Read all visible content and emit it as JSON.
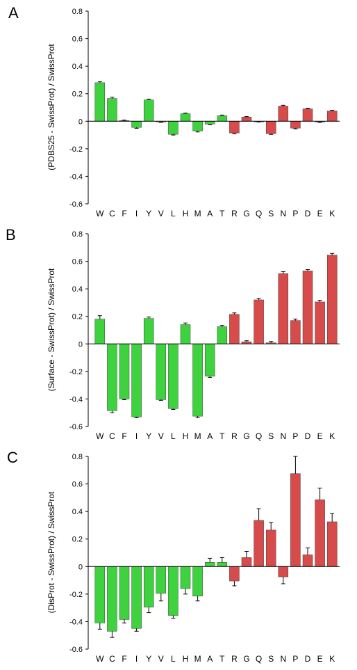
{
  "colors": {
    "hydrophobic": "#3fd23f",
    "polar": "#d84b4b",
    "axis": "#000000",
    "error": "#000000"
  },
  "chart_data": [
    {
      "type": "bar",
      "panel": "A",
      "ylabel": "(PDBS25 - SwissProt) / SwissProt",
      "ylim": [
        -0.6,
        0.8
      ],
      "yticks": [
        "0.8",
        "0.6",
        "0.4",
        "0.2",
        "0",
        "-0.2",
        "-0.4",
        "-0.6"
      ],
      "ytick_values": [
        0.8,
        0.6,
        0.4,
        0.2,
        0,
        -0.2,
        -0.4,
        -0.6
      ],
      "grid": false,
      "categories": [
        "W",
        "C",
        "F",
        "I",
        "Y",
        "V",
        "L",
        "H",
        "M",
        "A",
        "T",
        "R",
        "G",
        "Q",
        "S",
        "N",
        "P",
        "D",
        "E",
        "K"
      ],
      "values": [
        0.28,
        0.165,
        0.005,
        -0.045,
        0.155,
        -0.005,
        -0.095,
        0.055,
        -0.07,
        -0.02,
        0.04,
        -0.085,
        0.03,
        -0.002,
        -0.09,
        0.11,
        -0.05,
        0.09,
        -0.005,
        0.075
      ],
      "errors": [
        0.008,
        0.01,
        0.004,
        0.006,
        0.006,
        0.003,
        0.005,
        0.005,
        0.008,
        0.004,
        0.005,
        0.005,
        0.004,
        0.003,
        0.006,
        0.006,
        0.005,
        0.005,
        0.003,
        0.004
      ],
      "group": [
        "h",
        "h",
        "h",
        "h",
        "h",
        "h",
        "h",
        "h",
        "h",
        "h",
        "h",
        "p",
        "p",
        "p",
        "p",
        "p",
        "p",
        "p",
        "p",
        "p"
      ]
    },
    {
      "type": "bar",
      "panel": "B",
      "ylabel": "(Surface - SwissProt) / SwissProt",
      "ylim": [
        -0.6,
        0.8
      ],
      "yticks": [
        "0.8",
        "0.6",
        "0.4",
        "0.2",
        "0",
        "-0.2",
        "-0.4",
        "-0.6"
      ],
      "ytick_values": [
        0.8,
        0.6,
        0.4,
        0.2,
        0,
        -0.2,
        -0.4,
        -0.6
      ],
      "grid": false,
      "categories": [
        "W",
        "C",
        "F",
        "I",
        "Y",
        "V",
        "L",
        "H",
        "M",
        "A",
        "T",
        "R",
        "G",
        "Q",
        "S",
        "N",
        "P",
        "D",
        "E",
        "K"
      ],
      "values": [
        0.18,
        -0.485,
        -0.4,
        -0.53,
        0.185,
        -0.405,
        -0.47,
        0.14,
        -0.525,
        -0.235,
        0.125,
        0.215,
        0.015,
        0.32,
        0.008,
        0.51,
        0.17,
        0.53,
        0.305,
        0.645
      ],
      "errors": [
        0.025,
        0.015,
        0.005,
        0.006,
        0.01,
        0.005,
        0.006,
        0.012,
        0.01,
        0.008,
        0.01,
        0.01,
        0.008,
        0.01,
        0.01,
        0.015,
        0.01,
        0.01,
        0.012,
        0.012
      ],
      "group": [
        "h",
        "h",
        "h",
        "h",
        "h",
        "h",
        "h",
        "h",
        "h",
        "h",
        "h",
        "p",
        "p",
        "p",
        "p",
        "p",
        "p",
        "p",
        "p",
        "p"
      ]
    },
    {
      "type": "bar",
      "panel": "C",
      "ylabel": "(DisProt - SwissProt) / SwissProt",
      "ylim": [
        -0.6,
        0.8
      ],
      "yticks": [
        "0.8",
        "0.6",
        "0.4",
        "0.2",
        "0",
        "-0.2",
        "-0.4",
        "-0.6"
      ],
      "ytick_values": [
        0.8,
        0.6,
        0.4,
        0.2,
        0,
        -0.2,
        -0.4,
        -0.6
      ],
      "grid": false,
      "categories": [
        "W",
        "C",
        "F",
        "I",
        "Y",
        "V",
        "L",
        "H",
        "M",
        "A",
        "T",
        "R",
        "G",
        "Q",
        "S",
        "N",
        "P",
        "D",
        "E",
        "K"
      ],
      "values": [
        -0.41,
        -0.47,
        -0.385,
        -0.45,
        -0.295,
        -0.195,
        -0.355,
        -0.16,
        -0.215,
        0.03,
        0.03,
        -0.105,
        0.065,
        0.335,
        0.265,
        -0.075,
        0.675,
        0.085,
        0.485,
        0.325
      ],
      "errors": [
        0.045,
        0.045,
        0.025,
        0.02,
        0.04,
        0.055,
        0.02,
        0.04,
        0.035,
        0.03,
        0.035,
        0.035,
        0.045,
        0.085,
        0.055,
        0.05,
        0.125,
        0.05,
        0.085,
        0.06
      ],
      "group": [
        "h",
        "h",
        "h",
        "h",
        "h",
        "h",
        "h",
        "h",
        "h",
        "h",
        "h",
        "p",
        "p",
        "p",
        "p",
        "p",
        "p",
        "p",
        "p",
        "p"
      ]
    }
  ]
}
